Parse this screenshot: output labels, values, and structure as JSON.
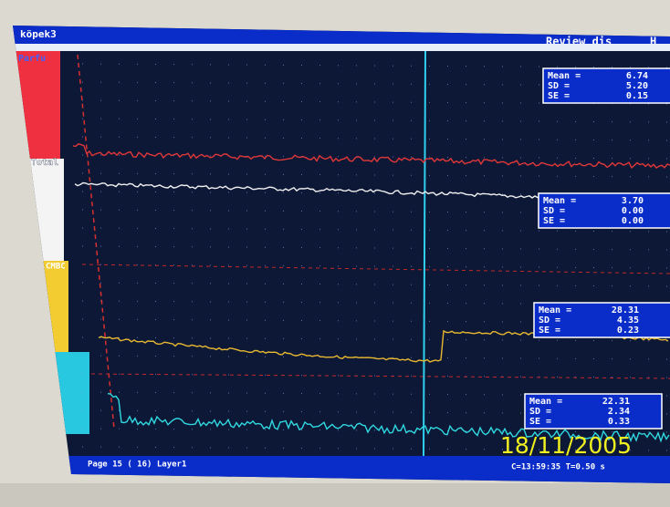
{
  "window": {
    "title": "köpek3",
    "mode": "Review dis",
    "menu": "H"
  },
  "sidebar": {
    "labels": [
      "Parfu",
      "Total",
      "CMBC"
    ]
  },
  "stats": [
    {
      "labels": [
        "Mean =",
        "SD =",
        "SE ="
      ],
      "values": [
        "6.74",
        "5.20",
        "0.15"
      ]
    },
    {
      "labels": [
        "Mean =",
        "SD =",
        "SE ="
      ],
      "values": [
        "3.70",
        "0.00",
        "0.00"
      ]
    },
    {
      "labels": [
        "Mean =",
        "SD =",
        "SE ="
      ],
      "values": [
        "28.31",
        "4.35",
        "0.23"
      ]
    },
    {
      "labels": [
        "Mean =",
        "SD =",
        "SE ="
      ],
      "values": [
        "22.31",
        "2.34",
        "0.33"
      ]
    }
  ],
  "footer": {
    "page": "Page 15 ( 16) Layer1",
    "time": "C=13:59:35 T=0.50 s"
  },
  "photo": {
    "timestamp": "18/11/2005"
  }
}
